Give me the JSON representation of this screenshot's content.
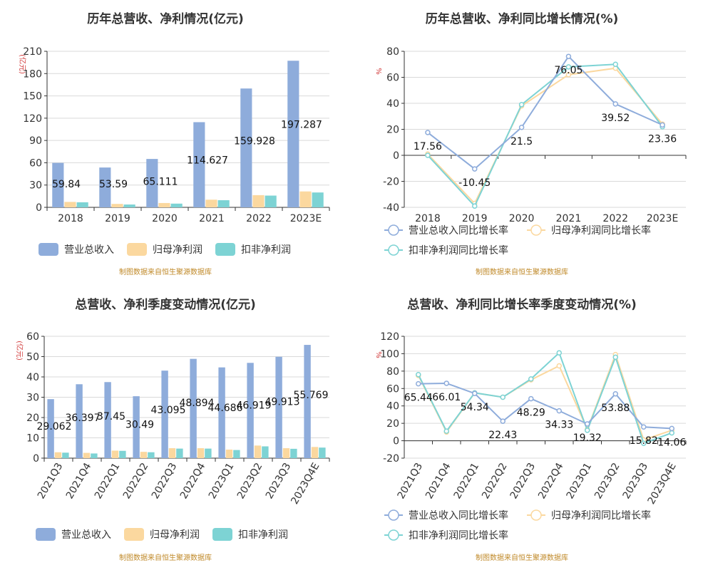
{
  "charts": [
    {
      "type": "bar",
      "title": "历年总营收、净利情况(亿元)",
      "unit": "(亿元)",
      "categories": [
        "2018",
        "2019",
        "2020",
        "2021",
        "2022",
        "2023E"
      ],
      "series": [
        {
          "name": "营业总收入",
          "color": "#8eacdb",
          "values": [
            59.84,
            53.59,
            65.111,
            114.627,
            159.928,
            197.287
          ],
          "labels": [
            "59.84",
            "53.59",
            "65.111",
            "114.627",
            "159.928",
            "197.287"
          ]
        },
        {
          "name": "归母净利润",
          "color": "#fbd89f",
          "values": [
            7.3,
            4.6,
            5.8,
            10.3,
            16.4,
            21.4
          ]
        },
        {
          "name": "扣非净利润",
          "color": "#7dd3d4",
          "values": [
            6.8,
            3.8,
            5.0,
            9.6,
            15.8,
            20.0
          ]
        }
      ],
      "ylim": [
        0,
        210
      ],
      "yticks": [
        0,
        30,
        60,
        90,
        120,
        150,
        180,
        210
      ],
      "source": "制图数据来自恒生聚源数据库"
    },
    {
      "type": "line",
      "title": "历年总营收、净利同比增长情况(%)",
      "unit": "%",
      "categories": [
        "2018",
        "2019",
        "2020",
        "2021",
        "2022",
        "2023E"
      ],
      "series": [
        {
          "name": "营业总收入同比增长率",
          "color": "#8eacdb",
          "values": [
            17.56,
            -10.45,
            21.5,
            76.05,
            39.52,
            23.36
          ],
          "labels": [
            "17.56",
            "-10.45",
            "21.5",
            "76.05",
            "39.52",
            "23.36"
          ]
        },
        {
          "name": "归母净利润同比增长率",
          "color": "#fbd89f",
          "values": [
            1,
            -37,
            38,
            62,
            67,
            24
          ]
        },
        {
          "name": "扣非净利润同比增长率",
          "color": "#7dd3d4",
          "values": [
            0,
            -39,
            39,
            68,
            70,
            22
          ]
        }
      ],
      "ylim": [
        -40,
        80
      ],
      "yticks": [
        -40,
        -20,
        0,
        20,
        40,
        60,
        80
      ],
      "source": "制图数据来自恒生聚源数据库"
    },
    {
      "type": "bar",
      "title": "总营收、净利季度变动情况(亿元)",
      "unit": "(亿元)",
      "categories": [
        "2021Q3",
        "2021Q4",
        "2022Q1",
        "2022Q2",
        "2022Q3",
        "2022Q4",
        "2023Q1",
        "2023Q2",
        "2023Q3",
        "2023Q4E"
      ],
      "series": [
        {
          "name": "营业总收入",
          "color": "#8eacdb",
          "values": [
            29.062,
            36.397,
            37.45,
            30.49,
            43.095,
            48.894,
            44.686,
            46.919,
            49.913,
            55.769
          ],
          "labels": [
            "29.062",
            "36.397",
            "37.45",
            "30.49",
            "43.095",
            "48.894",
            "44.686",
            "46.919",
            "49.913",
            "55.769"
          ]
        },
        {
          "name": "归母净利润",
          "color": "#fbd89f",
          "values": [
            2.9,
            2.6,
            3.7,
            3.1,
            4.9,
            4.9,
            4.2,
            6.2,
            4.9,
            5.5
          ]
        },
        {
          "name": "扣非净利润",
          "color": "#7dd3d4",
          "values": [
            2.7,
            2.3,
            3.6,
            2.9,
            4.7,
            4.7,
            4.0,
            5.8,
            4.6,
            5.2
          ]
        }
      ],
      "ylim": [
        0,
        60
      ],
      "yticks": [
        0,
        10,
        20,
        30,
        40,
        50,
        60
      ],
      "source": "制图数据来自恒生聚源数据库"
    },
    {
      "type": "line",
      "title": "总营收、净利同比增长率季度变动情况(%)",
      "unit": "%",
      "categories": [
        "2021Q3",
        "2021Q4",
        "2022Q1",
        "2022Q2",
        "2022Q3",
        "2022Q4",
        "2023Q1",
        "2023Q2",
        "2023Q3",
        "2023Q4E"
      ],
      "series": [
        {
          "name": "营业总收入同比增长率",
          "color": "#8eacdb",
          "values": [
            65.44,
            66.01,
            54.34,
            22.43,
            48.29,
            34.33,
            19.32,
            53.88,
            15.82,
            14.06
          ],
          "labels": [
            "65.44",
            "66.01",
            "54.34",
            "22.43",
            "48.29",
            "34.33",
            "19.32",
            "53.88",
            "15.82",
            "14.06"
          ]
        },
        {
          "name": "归母净利润同比增长率",
          "color": "#fbd89f",
          "values": [
            75,
            10,
            55,
            50,
            70,
            86,
            13,
            99,
            1,
            12
          ]
        },
        {
          "name": "扣非净利润同比增长率",
          "color": "#7dd3d4",
          "values": [
            76,
            11,
            55,
            50,
            71,
            101,
            12,
            96,
            -3,
            9
          ]
        }
      ],
      "ylim": [
        -20,
        120
      ],
      "yticks": [
        -20,
        0,
        20,
        40,
        60,
        80,
        100,
        120
      ],
      "source": "制图数据来自恒生聚源数据库"
    }
  ]
}
